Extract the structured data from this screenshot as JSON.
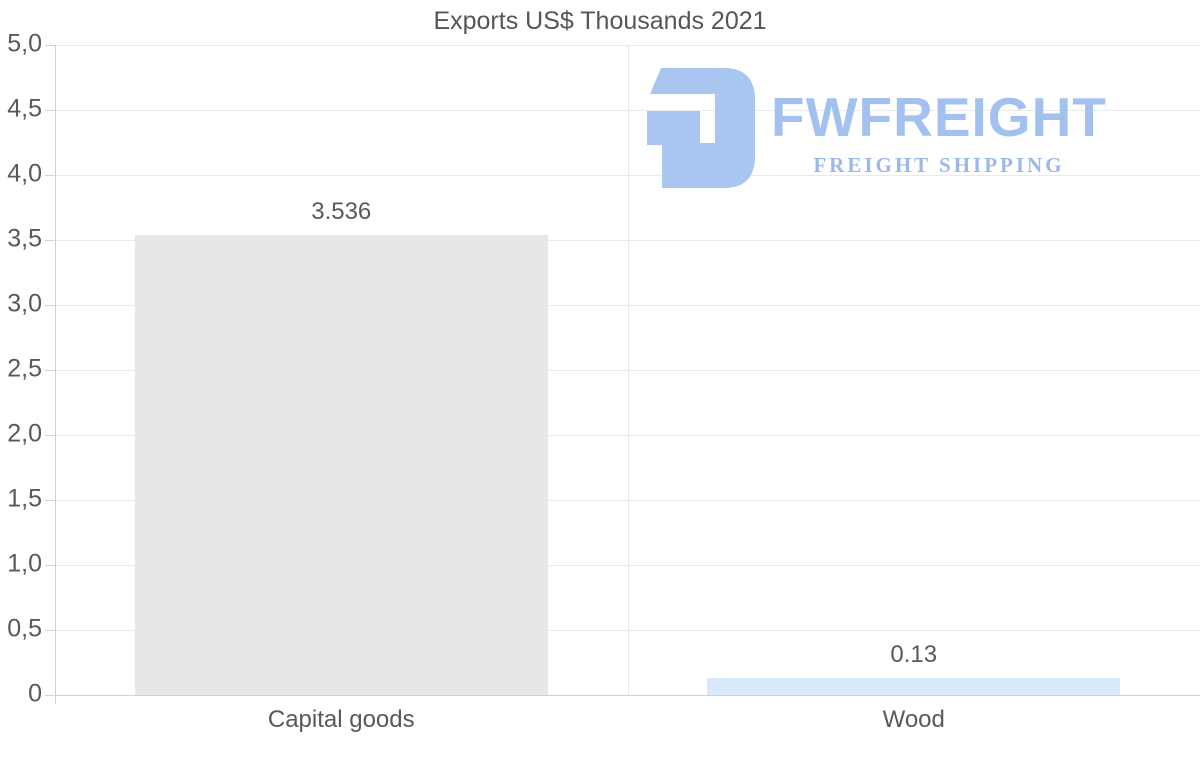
{
  "chart": {
    "title": "Exports US$ Thousands 2021"
  },
  "watermark": {
    "name": "FWFREIGHT",
    "tagline": "FREIGHT SHIPPING",
    "icon_color": "#a9c6f1",
    "name_color": "#a3c1ef",
    "tagline_color": "#9cb8e9"
  },
  "chart_data": {
    "type": "bar",
    "title": "Exports US$ Thousands 2021",
    "categories": [
      "Capital goods",
      "Wood"
    ],
    "values": [
      3.536,
      0.13
    ],
    "value_labels": [
      "3.536",
      "0.13"
    ],
    "bar_colors": [
      "#e7e7e7",
      "#d7e9fb"
    ],
    "xlabel": "",
    "ylabel": "",
    "ylim": [
      0,
      5
    ],
    "ytick_interval": 0.5,
    "ytick_labels": [
      "5,0",
      "4,5",
      "4,0",
      "3,5",
      "3,0",
      "2,5",
      "2,0",
      "1,5",
      "1,0",
      "0,5",
      "0"
    ],
    "grid": true,
    "legend": false,
    "text_color": "#595959"
  }
}
